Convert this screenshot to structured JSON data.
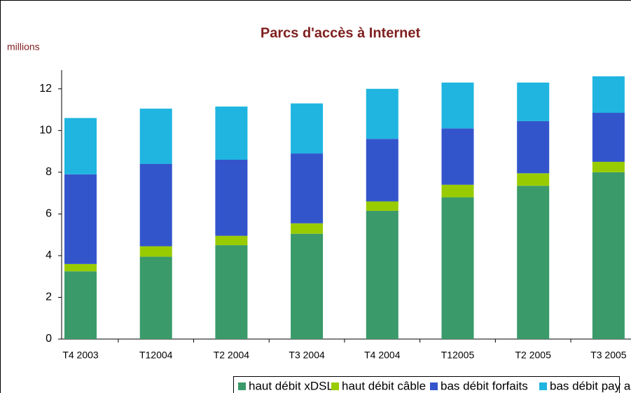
{
  "chart_data": {
    "type": "stacked_bar",
    "title": "Parcs d'accès à Internet",
    "y_label": "millions",
    "categories": [
      "T4 2003",
      "T12004",
      "T2 2004",
      "T3 2004",
      "T4 2004",
      "T12005",
      "T2 2005",
      "T3 2005"
    ],
    "series": [
      {
        "name": "haut débit xDSL",
        "color": "#3a9a6a",
        "values": [
          3.25,
          3.95,
          4.5,
          5.05,
          6.15,
          6.8,
          7.35,
          8.0
        ]
      },
      {
        "name": "haut débit câble",
        "color": "#99cc00",
        "values": [
          0.35,
          0.5,
          0.45,
          0.5,
          0.45,
          0.6,
          0.6,
          0.5
        ]
      },
      {
        "name": "bas débit forfaits",
        "color": "#3355cc",
        "values": [
          4.3,
          3.95,
          3.65,
          3.35,
          3.0,
          2.7,
          2.5,
          2.35
        ]
      },
      {
        "name": "bas débit pay as you go",
        "color": "#1fb5e0",
        "values": [
          2.7,
          2.65,
          2.55,
          2.4,
          2.4,
          2.2,
          1.85,
          1.75
        ]
      }
    ],
    "ylim": [
      0,
      12.9
    ],
    "yticks": [
      0,
      2,
      4,
      6,
      8,
      10,
      12
    ]
  }
}
